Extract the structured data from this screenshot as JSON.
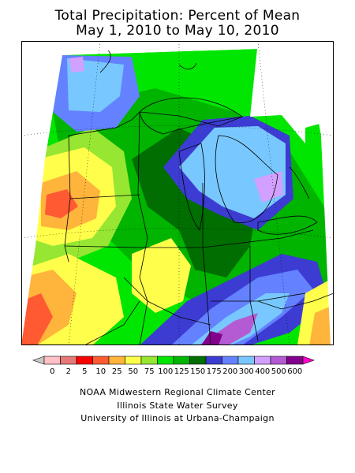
{
  "title": {
    "line1": "Total Precipitation: Percent of Mean",
    "line2": "May 1, 2010 to May 10, 2010"
  },
  "legend": {
    "labels": [
      "0",
      "2",
      "5",
      "10",
      "25",
      "50",
      "75",
      "100",
      "125",
      "150",
      "175",
      "200",
      "300",
      "400",
      "500",
      "600"
    ],
    "colors": [
      "#c8c8c8",
      "#ffc0c8",
      "#e67878",
      "#ff0000",
      "#ff5a32",
      "#ffb43c",
      "#ffff4b",
      "#96e632",
      "#00e600",
      "#00b400",
      "#006e00",
      "#3c3cd2",
      "#6482ff",
      "#78c8ff",
      "#d2a0ff",
      "#b45ad2",
      "#82008c",
      "#ff00c8"
    ]
  },
  "credits": {
    "line1": "NOAA Midwestern Regional Climate Center",
    "line2": "Illinois State Water Survey",
    "line3": "University of Illinois at Urbana-Champaign"
  }
}
